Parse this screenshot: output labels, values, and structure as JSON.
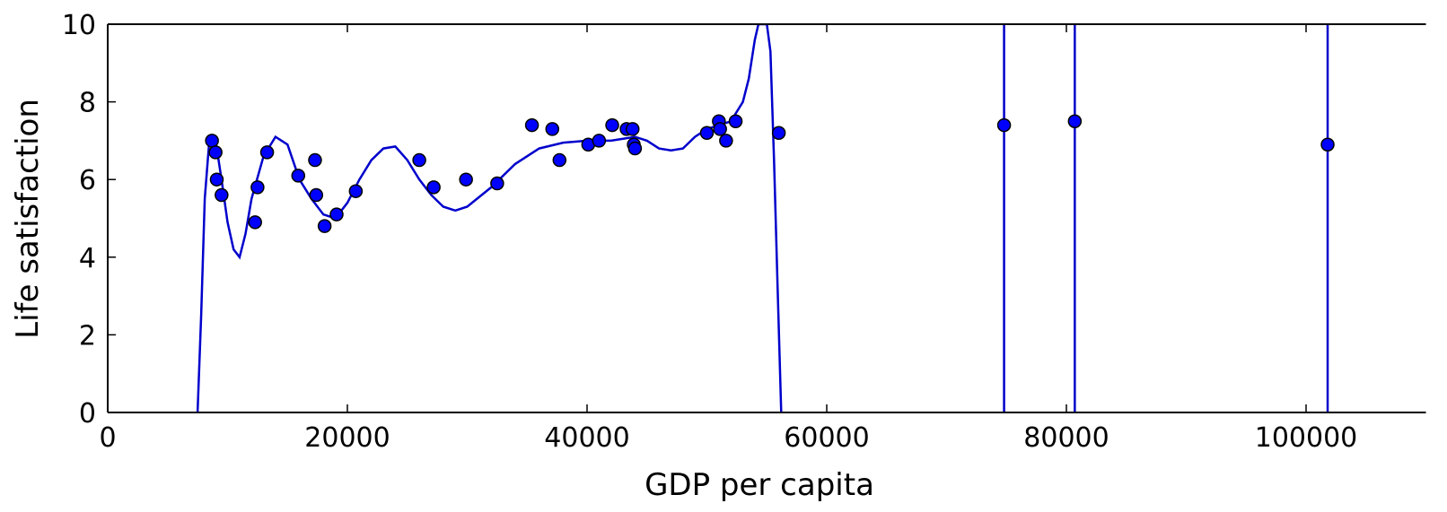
{
  "chart_data": {
    "type": "scatter",
    "xlabel": "GDP per capita",
    "ylabel": "Life satisfaction",
    "xlim": [
      0,
      110000
    ],
    "ylim": [
      0,
      10
    ],
    "xticks": [
      0,
      20000,
      40000,
      60000,
      80000,
      100000
    ],
    "xtick_labels": [
      "0",
      "20000",
      "40000",
      "60000",
      "80000",
      "100000"
    ],
    "yticks": [
      0,
      2,
      4,
      6,
      8,
      10
    ],
    "ytick_labels": [
      "0",
      "2",
      "4",
      "6",
      "8",
      "10"
    ],
    "grid": false,
    "colors": {
      "points": "#0000ff",
      "curve": "#0000cc",
      "axes": "#000000"
    },
    "series": [
      {
        "type": "scatter",
        "x": [
          8700,
          9000,
          9100,
          9500,
          12300,
          12500,
          13300,
          15900,
          17300,
          17400,
          18100,
          19100,
          20700,
          26000,
          27200,
          29900,
          32500,
          35400,
          37100,
          37700,
          40100,
          41000,
          42100,
          43300,
          43800,
          43900,
          44000,
          50000,
          51000,
          51100,
          51600,
          52400,
          56000,
          74800,
          80700,
          101800
        ],
        "y": [
          7.0,
          6.7,
          6.0,
          5.6,
          4.9,
          5.8,
          6.7,
          6.1,
          6.5,
          5.6,
          4.8,
          5.1,
          5.7,
          6.5,
          5.8,
          6.0,
          5.9,
          7.4,
          7.3,
          6.5,
          6.9,
          7.0,
          7.4,
          7.3,
          7.3,
          6.9,
          6.8,
          7.2,
          7.5,
          7.3,
          7.0,
          7.5,
          7.2,
          7.4,
          7.5,
          6.9
        ]
      },
      {
        "type": "line",
        "x": [
          7500,
          7800,
          8100,
          8500,
          9000,
          9500,
          10000,
          10500,
          11000,
          11500,
          12000,
          13000,
          14000,
          15000,
          16000,
          17000,
          18000,
          19000,
          20000,
          21000,
          22000,
          23000,
          24000,
          25000,
          26000,
          27000,
          28000,
          29000,
          30000,
          32000,
          34000,
          36000,
          38000,
          40000,
          42000,
          44000,
          45000,
          46000,
          47000,
          48000,
          49000,
          50000,
          51000,
          52000,
          53000,
          53500,
          54000,
          54300,
          54600,
          55000,
          55300,
          55600,
          55900,
          56200
        ],
        "y": [
          0,
          2.5,
          5.5,
          7.1,
          7.0,
          6.0,
          4.9,
          4.2,
          4.0,
          4.6,
          5.5,
          6.6,
          7.1,
          6.9,
          6.0,
          5.5,
          5.1,
          5.0,
          5.4,
          6.0,
          6.5,
          6.8,
          6.85,
          6.5,
          6.0,
          5.6,
          5.3,
          5.2,
          5.3,
          5.8,
          6.4,
          6.8,
          6.95,
          7.0,
          7.0,
          7.1,
          7.0,
          6.8,
          6.75,
          6.8,
          7.1,
          7.3,
          7.4,
          7.5,
          8.0,
          8.6,
          9.6,
          10,
          10,
          10,
          9.3,
          6.5,
          3.2,
          0
        ]
      },
      {
        "type": "vline",
        "x": 74800
      },
      {
        "type": "vline",
        "x": 80700
      },
      {
        "type": "vline",
        "x": 101800
      }
    ]
  }
}
